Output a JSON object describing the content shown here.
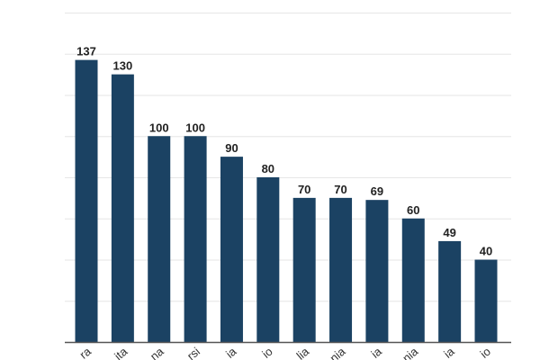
{
  "chart_data": {
    "type": "bar",
    "categories": [
      "ra",
      "ita",
      "na",
      "rsi",
      "ia",
      "io",
      "lia",
      "nia",
      "ia",
      "nia",
      "ia",
      "io"
    ],
    "values": [
      137,
      130,
      100,
      100,
      90,
      80,
      70,
      70,
      69,
      60,
      49,
      40
    ],
    "ylim": [
      0,
      160
    ],
    "grid": true,
    "grid_step": 20,
    "data_labels": true,
    "bar_color": "#1b4263",
    "title": "",
    "xlabel": "",
    "ylabel": ""
  }
}
